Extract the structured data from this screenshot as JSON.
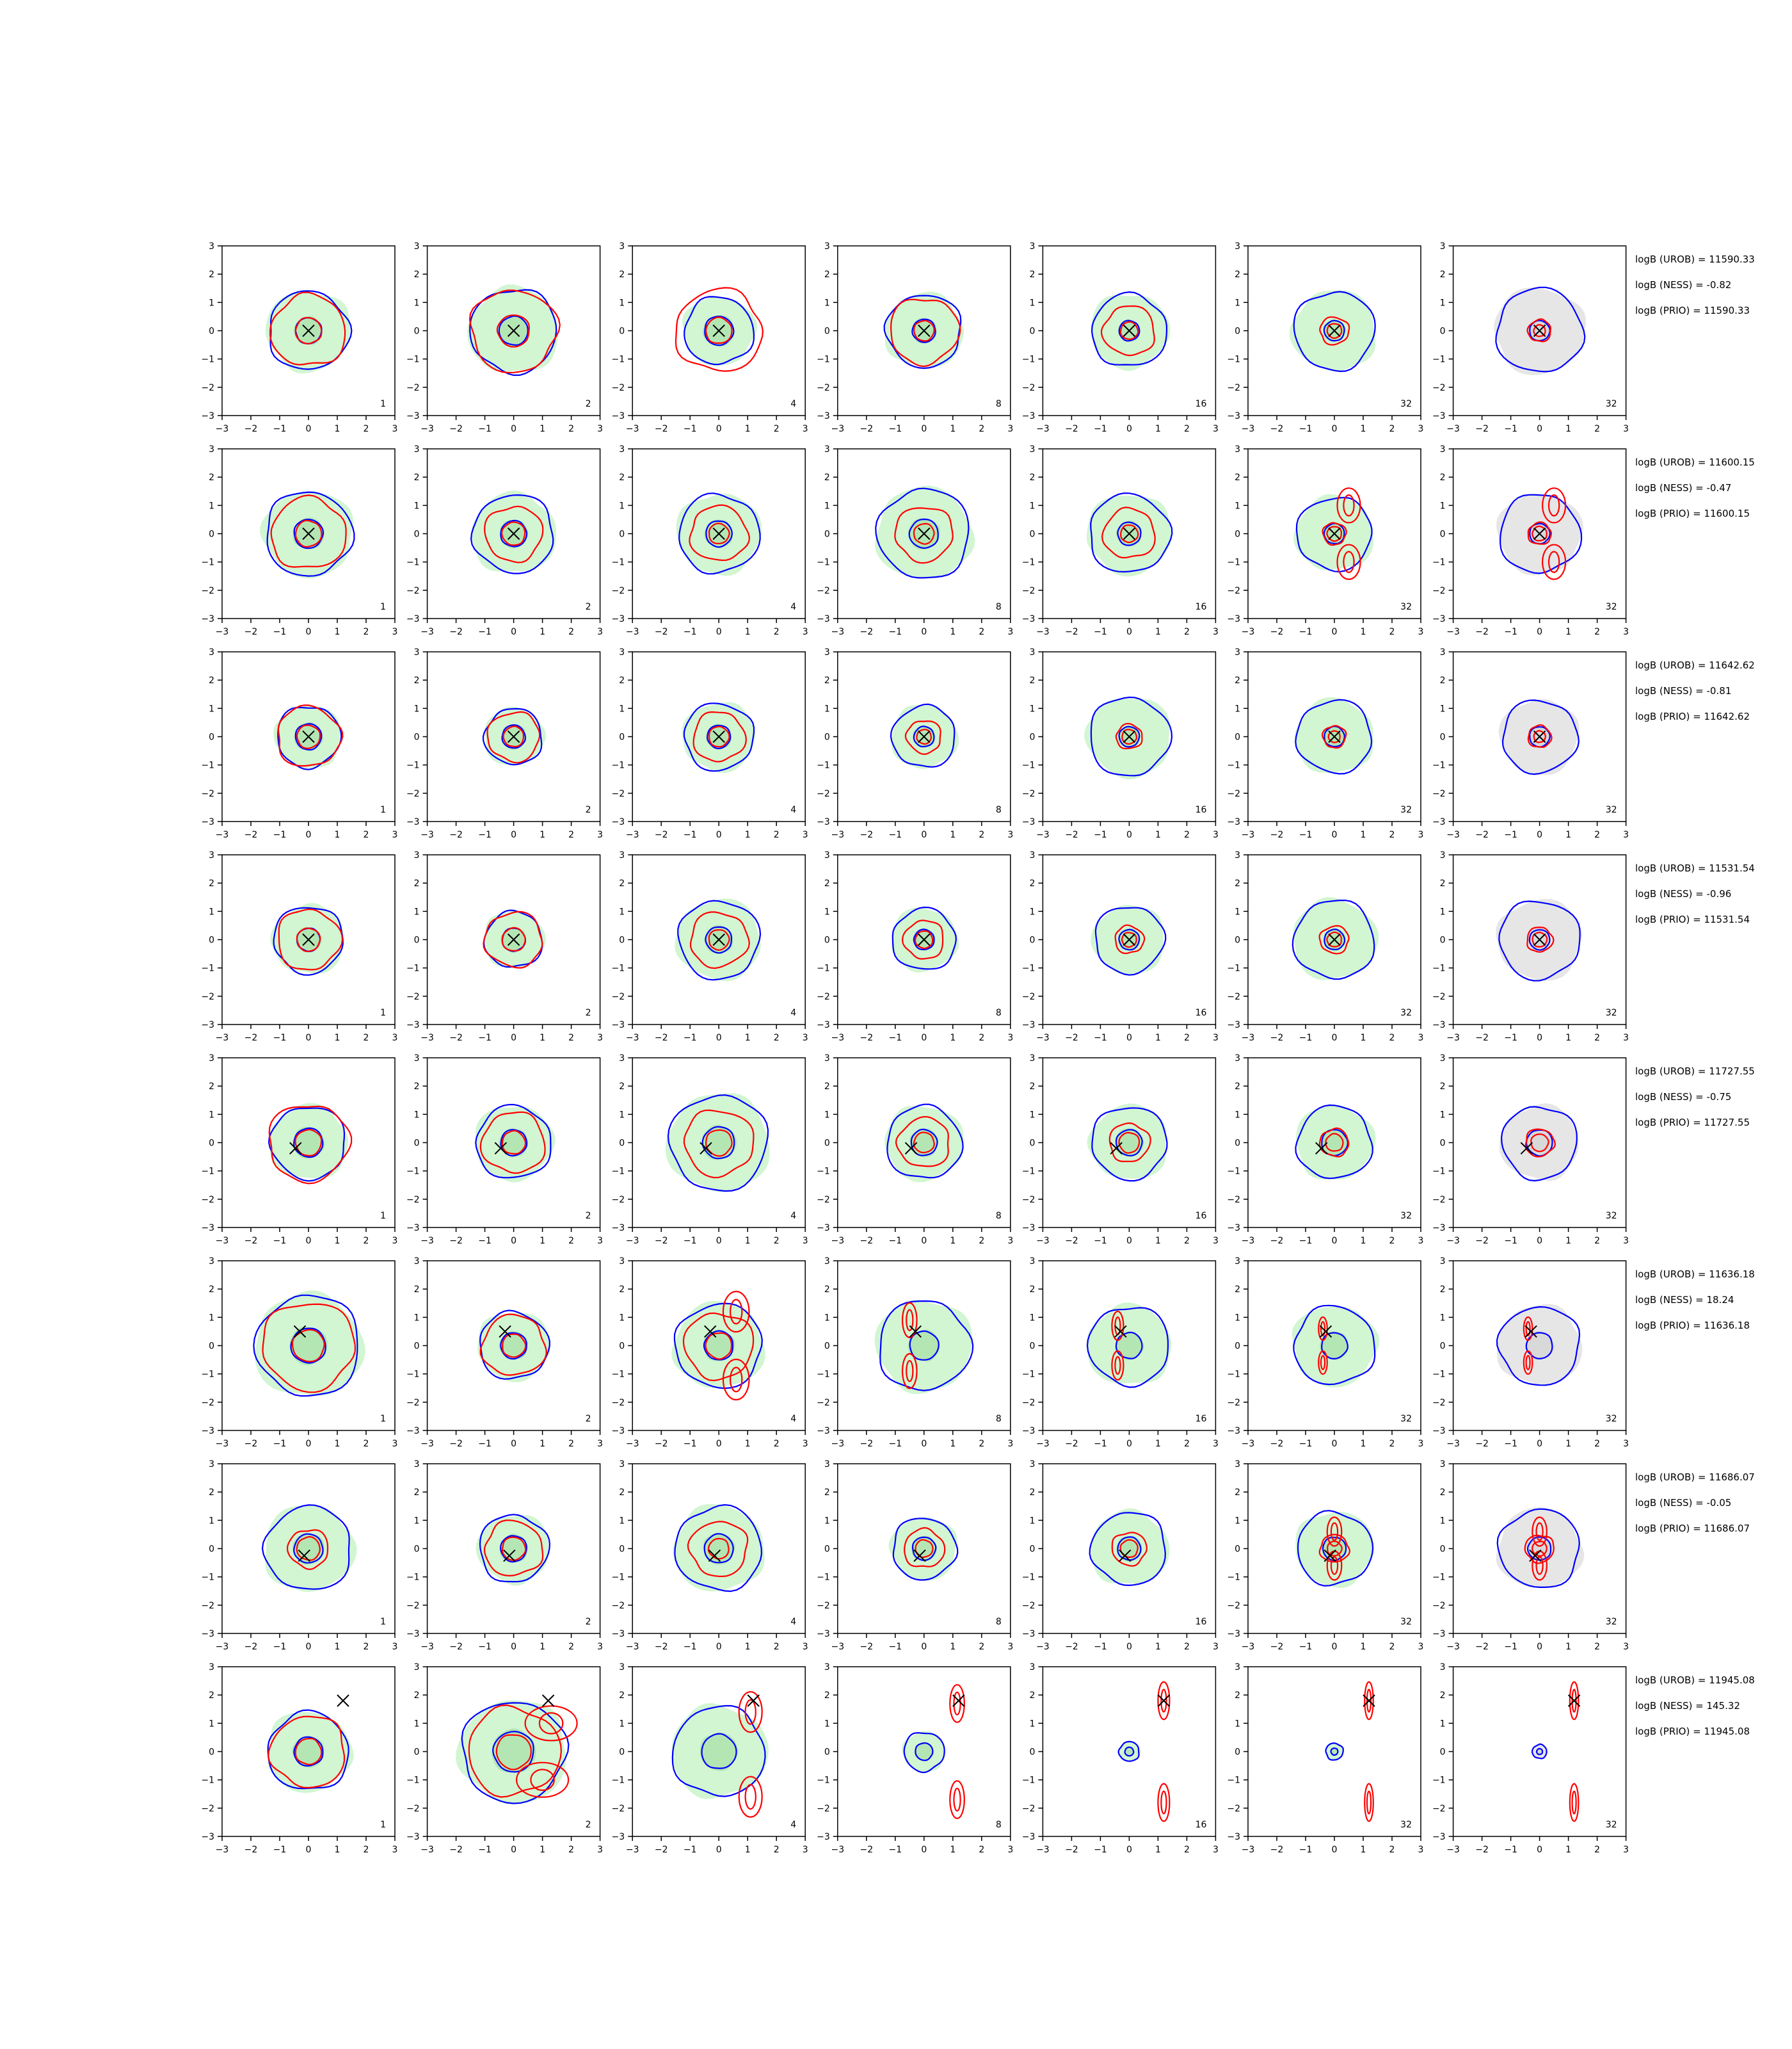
{
  "figure": {
    "columns": 7,
    "rows": 8
  },
  "chart_data": {
    "type": "contour-grid",
    "axis": {
      "xlim": [
        -3,
        3
      ],
      "ylim": [
        -3,
        3
      ],
      "ticks": [
        -3,
        -2,
        -1,
        0,
        1,
        2,
        3
      ],
      "tick_labels": [
        "−3",
        "−2",
        "−1",
        "0",
        "1",
        "2",
        "3"
      ],
      "grid": false
    },
    "panel_labels": [
      "1",
      "2",
      "4",
      "8",
      "16",
      "32",
      "32"
    ],
    "contour_colors": {
      "inner_fill": "#b4e6b4",
      "outer_fill": "#d2f5d2",
      "prior_fill": "#e6e6e6",
      "blue": "#0000ff",
      "red": "#ff0000",
      "marker": "#000000"
    },
    "rows": [
      {
        "annotations": [
          "logB (UROB) = 11590.33",
          "logB (NESS) = -0.82",
          "logB (PRIO) = 11590.33"
        ],
        "marker": [
          0,
          0
        ],
        "panels": [
          {
            "label": "1",
            "blue": [
              1.4,
              0.45
            ],
            "red": [
              1.3,
              0.45
            ],
            "red_pair": []
          },
          {
            "label": "2",
            "blue": [
              1.5,
              0.5
            ],
            "red": [
              1.5,
              0.55
            ],
            "red_pair": []
          },
          {
            "label": "4",
            "blue": [
              1.2,
              0.5
            ],
            "red": [
              1.5,
              0.45
            ],
            "red_pair": []
          },
          {
            "label": "8",
            "blue": [
              1.3,
              0.4
            ],
            "red": [
              1.2,
              0.35
            ],
            "red_pair": []
          },
          {
            "label": "16",
            "blue": [
              1.3,
              0.35
            ],
            "red": [
              0.9,
              0.3
            ],
            "red_pair": []
          },
          {
            "label": "32",
            "blue": [
              1.4,
              0.35
            ],
            "red": [
              0.5,
              0.25
            ],
            "red_pair": []
          },
          {
            "label": "32",
            "blue": [
              1.5,
              0.35
            ],
            "red": [
              0.4,
              0.2
            ],
            "red_pair": []
          }
        ]
      },
      {
        "annotations": [
          "logB (UROB) = 11600.15",
          "logB (NESS) = -0.47",
          "logB (PRIO) = 11600.15"
        ],
        "marker": [
          0,
          0
        ],
        "panels": [
          {
            "label": "1",
            "blue": [
              1.5,
              0.5
            ],
            "red": [
              1.3,
              0.45
            ],
            "red_pair": []
          },
          {
            "label": "2",
            "blue": [
              1.4,
              0.45
            ],
            "red": [
              1.0,
              0.4
            ],
            "red_pair": []
          },
          {
            "label": "4",
            "blue": [
              1.4,
              0.45
            ],
            "red": [
              1.0,
              0.35
            ],
            "red_pair": []
          },
          {
            "label": "8",
            "blue": [
              1.6,
              0.5
            ],
            "red": [
              1.0,
              0.35
            ],
            "red_pair": []
          },
          {
            "label": "16",
            "blue": [
              1.4,
              0.4
            ],
            "red": [
              0.9,
              0.3
            ],
            "red_pair": []
          },
          {
            "label": "32",
            "blue": [
              1.3,
              0.35
            ],
            "red": [
              0.4,
              0.25
            ],
            "red_pair": [
              [
                0.5,
                1.0,
                0.6,
                0.4
              ],
              [
                0.5,
                -1.0,
                0.6,
                0.4
              ]
            ]
          },
          {
            "label": "32",
            "blue": [
              1.4,
              0.35
            ],
            "red": [
              0.4,
              0.25
            ],
            "red_pair": [
              [
                0.5,
                1.0,
                0.6,
                0.4
              ],
              [
                0.5,
                -1.0,
                0.6,
                0.4
              ]
            ]
          }
        ]
      },
      {
        "annotations": [
          "logB (UROB) = 11642.62",
          "logB (NESS) = -0.81",
          "logB (PRIO) = 11642.62"
        ],
        "marker": [
          0,
          0
        ],
        "panels": [
          {
            "label": "1",
            "blue": [
              1.1,
              0.45
            ],
            "red": [
              1.1,
              0.4
            ],
            "red_pair": []
          },
          {
            "label": "2",
            "blue": [
              1.0,
              0.4
            ],
            "red": [
              0.9,
              0.35
            ],
            "red_pair": []
          },
          {
            "label": "4",
            "blue": [
              1.2,
              0.4
            ],
            "red": [
              0.9,
              0.35
            ],
            "red_pair": []
          },
          {
            "label": "8",
            "blue": [
              1.1,
              0.35
            ],
            "red": [
              0.6,
              0.25
            ],
            "red_pair": []
          },
          {
            "label": "16",
            "blue": [
              1.4,
              0.35
            ],
            "red": [
              0.45,
              0.25
            ],
            "red_pair": []
          },
          {
            "label": "32",
            "blue": [
              1.3,
              0.35
            ],
            "red": [
              0.4,
              0.2
            ],
            "red_pair": []
          },
          {
            "label": "32",
            "blue": [
              1.3,
              0.35
            ],
            "red": [
              0.4,
              0.2
            ],
            "red_pair": []
          }
        ]
      },
      {
        "annotations": [
          "logB (UROB) = 11531.54",
          "logB (NESS) = -0.96",
          "logB (PRIO) = 11531.54"
        ],
        "marker": [
          0,
          0
        ],
        "panels": [
          {
            "label": "1",
            "blue": [
              1.2,
              0.4
            ],
            "red": [
              1.1,
              0.4
            ],
            "red_pair": []
          },
          {
            "label": "2",
            "blue": [
              1.0,
              0.4
            ],
            "red": [
              1.0,
              0.4
            ],
            "red_pair": []
          },
          {
            "label": "4",
            "blue": [
              1.4,
              0.45
            ],
            "red": [
              1.0,
              0.35
            ],
            "red_pair": []
          },
          {
            "label": "8",
            "blue": [
              1.1,
              0.35
            ],
            "red": [
              0.7,
              0.3
            ],
            "red_pair": []
          },
          {
            "label": "16",
            "blue": [
              1.2,
              0.35
            ],
            "red": [
              0.5,
              0.25
            ],
            "red_pair": []
          },
          {
            "label": "32",
            "blue": [
              1.4,
              0.35
            ],
            "red": [
              0.5,
              0.25
            ],
            "red_pair": []
          },
          {
            "label": "32",
            "blue": [
              1.4,
              0.35
            ],
            "red": [
              0.45,
              0.25
            ],
            "red_pair": []
          }
        ]
      },
      {
        "annotations": [
          "logB (UROB) = 11727.55",
          "logB (NESS) = -0.75",
          "logB (PRIO) = 11727.55"
        ],
        "marker": [
          -0.45,
          -0.2
        ],
        "panels": [
          {
            "label": "1",
            "blue": [
              1.3,
              0.5
            ],
            "red": [
              1.4,
              0.45
            ],
            "red_pair": []
          },
          {
            "label": "2",
            "blue": [
              1.3,
              0.45
            ],
            "red": [
              1.1,
              0.4
            ],
            "red_pair": []
          },
          {
            "label": "4",
            "blue": [
              1.7,
              0.55
            ],
            "red": [
              1.2,
              0.45
            ],
            "red_pair": []
          },
          {
            "label": "8",
            "blue": [
              1.3,
              0.45
            ],
            "red": [
              0.9,
              0.35
            ],
            "red_pair": []
          },
          {
            "label": "16",
            "blue": [
              1.3,
              0.45
            ],
            "red": [
              0.7,
              0.35
            ],
            "red_pair": []
          },
          {
            "label": "32",
            "blue": [
              1.3,
              0.45
            ],
            "red": [
              0.5,
              0.3
            ],
            "red_pair": []
          },
          {
            "label": "32",
            "blue": [
              1.3,
              0.45
            ],
            "red": [
              0.5,
              0.3
            ],
            "red_pair": []
          }
        ]
      },
      {
        "annotations": [
          "logB (UROB) = 11636.18",
          "logB (NESS) = 18.24",
          "logB (PRIO) = 11636.18"
        ],
        "marker": [
          -0.3,
          0.5
        ],
        "panels": [
          {
            "label": "1",
            "blue": [
              1.8,
              0.6
            ],
            "red": [
              1.6,
              0.55
            ],
            "red_pair": []
          },
          {
            "label": "2",
            "blue": [
              1.2,
              0.45
            ],
            "red": [
              1.1,
              0.4
            ],
            "red_pair": []
          },
          {
            "label": "4",
            "blue": [
              1.5,
              0.5
            ],
            "red": [
              1.2,
              0.45
            ],
            "red_pair": [
              [
                0.6,
                1.2,
                0.7,
                0.45
              ],
              [
                0.6,
                -1.2,
                0.7,
                0.45
              ]
            ]
          },
          {
            "label": "8",
            "blue": [
              1.6,
              0.5
            ],
            "red": [
              0,
              0
            ],
            "red_pair": [
              [
                -0.5,
                0.9,
                0.6,
                0.25
              ],
              [
                -0.5,
                -0.9,
                0.6,
                0.25
              ]
            ]
          },
          {
            "label": "16",
            "blue": [
              1.4,
              0.45
            ],
            "red": [
              0,
              0
            ],
            "red_pair": [
              [
                -0.4,
                0.7,
                0.5,
                0.2
              ],
              [
                -0.4,
                -0.7,
                0.5,
                0.2
              ]
            ]
          },
          {
            "label": "32",
            "blue": [
              1.4,
              0.45
            ],
            "red": [
              0,
              0
            ],
            "red_pair": [
              [
                -0.4,
                0.6,
                0.4,
                0.15
              ],
              [
                -0.4,
                -0.6,
                0.4,
                0.15
              ]
            ]
          },
          {
            "label": "32",
            "blue": [
              1.4,
              0.45
            ],
            "red": [
              0,
              0
            ],
            "red_pair": [
              [
                -0.4,
                0.6,
                0.4,
                0.15
              ],
              [
                -0.4,
                -0.6,
                0.4,
                0.15
              ]
            ]
          }
        ]
      },
      {
        "annotations": [
          "logB (UROB) = 11686.07",
          "logB (NESS) = -0.05",
          "logB (PRIO) = 11686.07"
        ],
        "marker": [
          -0.15,
          -0.25
        ],
        "panels": [
          {
            "label": "1",
            "blue": [
              1.5,
              0.5
            ],
            "red": [
              0.7,
              0.4
            ],
            "red_pair": []
          },
          {
            "label": "2",
            "blue": [
              1.2,
              0.45
            ],
            "red": [
              1.0,
              0.4
            ],
            "red_pair": []
          },
          {
            "label": "4",
            "blue": [
              1.5,
              0.5
            ],
            "red": [
              1.0,
              0.35
            ],
            "red_pair": []
          },
          {
            "label": "8",
            "blue": [
              1.1,
              0.4
            ],
            "red": [
              0.7,
              0.3
            ],
            "red_pair": []
          },
          {
            "label": "16",
            "blue": [
              1.3,
              0.4
            ],
            "red": [
              0.6,
              0.3
            ],
            "red_pair": []
          },
          {
            "label": "32",
            "blue": [
              1.3,
              0.4
            ],
            "red": [
              0.5,
              0.25
            ],
            "red_pair": [
              [
                0,
                0.6,
                0.5,
                0.25
              ],
              [
                0,
                -0.6,
                0.5,
                0.25
              ]
            ]
          },
          {
            "label": "32",
            "blue": [
              1.4,
              0.4
            ],
            "red": [
              0.5,
              0.25
            ],
            "red_pair": [
              [
                0,
                0.6,
                0.5,
                0.25
              ],
              [
                0,
                -0.6,
                0.5,
                0.25
              ]
            ]
          }
        ]
      },
      {
        "annotations": [
          "logB (UROB) = 11945.08",
          "logB (NESS) = 145.32",
          "logB (PRIO) = 11945.08"
        ],
        "marker": [
          1.2,
          1.8
        ],
        "panels": [
          {
            "label": "1",
            "blue": [
              1.4,
              0.5
            ],
            "red": [
              1.3,
              0.45
            ],
            "red_pair": []
          },
          {
            "label": "2",
            "blue": [
              1.8,
              0.7
            ],
            "red": [
              1.6,
              0.6
            ],
            "red_pair": [
              [
                1.3,
                1.0,
                0.6,
                0.9
              ],
              [
                1.0,
                -1.0,
                0.6,
                0.9
              ]
            ]
          },
          {
            "label": "4",
            "blue": [
              1.6,
              0.6
            ],
            "red": [
              0,
              0
            ],
            "red_pair": [
              [
                1.1,
                1.4,
                0.7,
                0.4
              ],
              [
                1.1,
                -1.6,
                0.7,
                0.4
              ]
            ]
          },
          {
            "label": "8",
            "blue": [
              0.7,
              0.3
            ],
            "red": [
              0,
              0
            ],
            "red_pair": [
              [
                1.15,
                1.7,
                0.65,
                0.25
              ],
              [
                1.15,
                -1.7,
                0.65,
                0.25
              ]
            ]
          },
          {
            "label": "16",
            "blue": [
              0.35,
              0.15
            ],
            "red": [
              0,
              0
            ],
            "red_pair": [
              [
                1.2,
                1.8,
                0.65,
                0.2
              ],
              [
                1.2,
                -1.8,
                0.65,
                0.2
              ]
            ]
          },
          {
            "label": "32",
            "blue": [
              0.3,
              0.12
            ],
            "red": [
              0,
              0
            ],
            "red_pair": [
              [
                1.2,
                1.8,
                0.65,
                0.15
              ],
              [
                1.2,
                -1.8,
                0.65,
                0.15
              ]
            ]
          },
          {
            "label": "32",
            "blue": [
              0.25,
              0.1
            ],
            "red": [
              0,
              0
            ],
            "red_pair": [
              [
                1.2,
                1.8,
                0.65,
                0.15
              ],
              [
                1.2,
                -1.8,
                0.65,
                0.15
              ]
            ]
          }
        ]
      }
    ]
  }
}
